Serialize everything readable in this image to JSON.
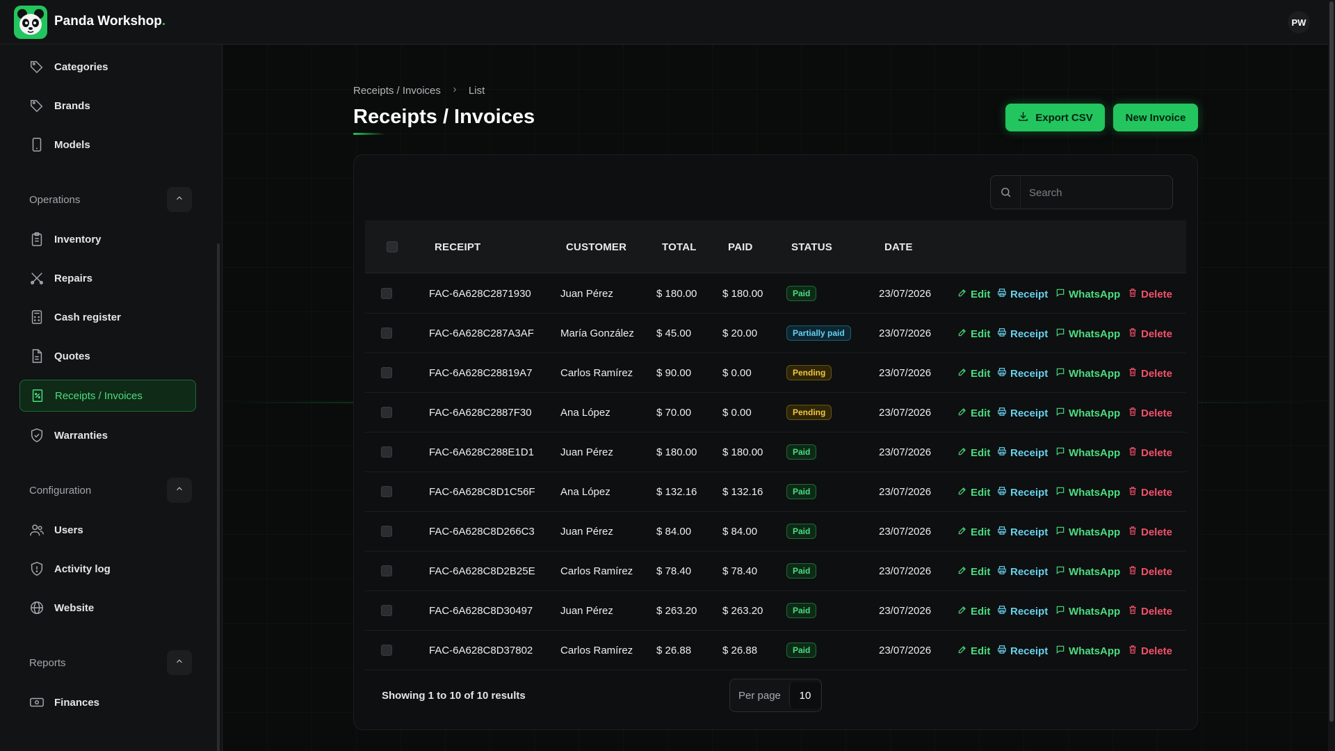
{
  "app": {
    "brand": "Panda Workshop",
    "brand_dot": ".",
    "avatar": "PW"
  },
  "sidebar": {
    "top_items": [
      {
        "label": "Categories",
        "icon": "tag-icon"
      },
      {
        "label": "Brands",
        "icon": "tag-icon"
      },
      {
        "label": "Models",
        "icon": "smartphone-icon"
      }
    ],
    "sections": [
      {
        "title": "Operations",
        "items": [
          {
            "label": "Inventory",
            "icon": "clipboard-icon"
          },
          {
            "label": "Repairs",
            "icon": "tools-icon"
          },
          {
            "label": "Cash register",
            "icon": "calculator-icon"
          },
          {
            "label": "Quotes",
            "icon": "document-icon"
          },
          {
            "label": "Receipts / Invoices",
            "icon": "receipt-icon",
            "active": true
          },
          {
            "label": "Warranties",
            "icon": "shield-check-icon"
          }
        ]
      },
      {
        "title": "Configuration",
        "items": [
          {
            "label": "Users",
            "icon": "users-icon"
          },
          {
            "label": "Activity log",
            "icon": "shield-alert-icon"
          },
          {
            "label": "Website",
            "icon": "globe-icon"
          }
        ]
      },
      {
        "title": "Reports",
        "items": [
          {
            "label": "Finances",
            "icon": "banknote-icon"
          }
        ]
      }
    ]
  },
  "breadcrumb": {
    "parent": "Receipts / Invoices",
    "current": "List"
  },
  "page": {
    "title": "Receipts / Invoices"
  },
  "buttons": {
    "export": "Export CSV",
    "new": "New Invoice"
  },
  "search": {
    "placeholder": "Search",
    "value": ""
  },
  "table": {
    "columns": [
      "RECEIPT",
      "CUSTOMER",
      "TOTAL",
      "PAID",
      "STATUS",
      "DATE"
    ],
    "actions": {
      "edit": "Edit",
      "receipt": "Receipt",
      "whatsapp": "WhatsApp",
      "delete": "Delete"
    },
    "rows": [
      {
        "receipt": "FAC-6A628C2871930",
        "customer": "Juan Pérez",
        "total": "$ 180.00",
        "paid": "$ 180.00",
        "status": "Paid",
        "status_type": "paid",
        "date": "23/07/2026"
      },
      {
        "receipt": "FAC-6A628C287A3AF",
        "customer": "María González",
        "total": "$ 45.00",
        "paid": "$ 20.00",
        "status": "Partially paid",
        "status_type": "partial",
        "date": "23/07/2026"
      },
      {
        "receipt": "FAC-6A628C28819A7",
        "customer": "Carlos Ramírez",
        "total": "$ 90.00",
        "paid": "$ 0.00",
        "status": "Pending",
        "status_type": "pending",
        "date": "23/07/2026"
      },
      {
        "receipt": "FAC-6A628C2887F30",
        "customer": "Ana López",
        "total": "$ 70.00",
        "paid": "$ 0.00",
        "status": "Pending",
        "status_type": "pending",
        "date": "23/07/2026"
      },
      {
        "receipt": "FAC-6A628C288E1D1",
        "customer": "Juan Pérez",
        "total": "$ 180.00",
        "paid": "$ 180.00",
        "status": "Paid",
        "status_type": "paid",
        "date": "23/07/2026"
      },
      {
        "receipt": "FAC-6A628C8D1C56F",
        "customer": "Ana López",
        "total": "$ 132.16",
        "paid": "$ 132.16",
        "status": "Paid",
        "status_type": "paid",
        "date": "23/07/2026"
      },
      {
        "receipt": "FAC-6A628C8D266C3",
        "customer": "Juan Pérez",
        "total": "$ 84.00",
        "paid": "$ 84.00",
        "status": "Paid",
        "status_type": "paid",
        "date": "23/07/2026"
      },
      {
        "receipt": "FAC-6A628C8D2B25E",
        "customer": "Carlos Ramírez",
        "total": "$ 78.40",
        "paid": "$ 78.40",
        "status": "Paid",
        "status_type": "paid",
        "date": "23/07/2026"
      },
      {
        "receipt": "FAC-6A628C8D30497",
        "customer": "Juan Pérez",
        "total": "$ 263.20",
        "paid": "$ 263.20",
        "status": "Paid",
        "status_type": "paid",
        "date": "23/07/2026"
      },
      {
        "receipt": "FAC-6A628C8D37802",
        "customer": "Carlos Ramírez",
        "total": "$ 26.88",
        "paid": "$ 26.88",
        "status": "Paid",
        "status_type": "paid",
        "date": "23/07/2026"
      }
    ]
  },
  "footer": {
    "summary": "Showing 1 to 10 of 10 results",
    "per_page_label": "Per page",
    "per_page_value": "10"
  },
  "colors": {
    "accent": "#22c55e",
    "paid": "#4ade80",
    "partial": "#67d2ee",
    "pending": "#f5c542",
    "danger": "#f4516c"
  }
}
